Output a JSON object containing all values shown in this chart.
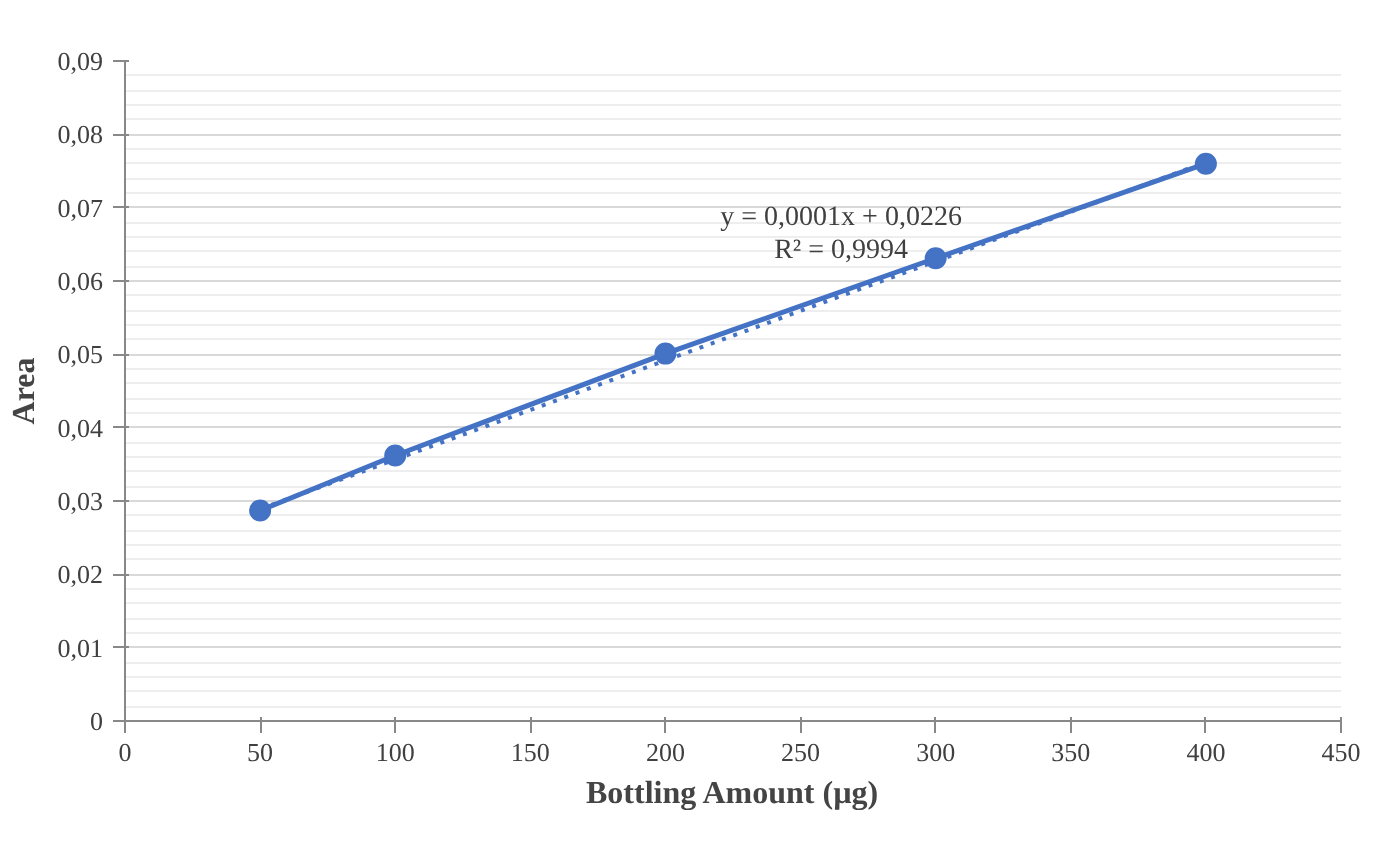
{
  "chart_data": {
    "type": "line",
    "xlabel": "Bottling Amount (µg)",
    "ylabel": "Area",
    "series": [
      {
        "name": null,
        "marker": "circle",
        "line_style": "solid",
        "color": "#4472c4",
        "x": [
          50,
          100,
          200,
          300,
          400
        ],
        "values": [
          0.0287,
          0.0362,
          0.0501,
          0.0631,
          0.076
        ]
      },
      {
        "name": null,
        "type": "line",
        "marker": "none",
        "line_style": "dotted",
        "color": "#4472c4",
        "x": [
          50,
          400
        ],
        "values": [
          0.0289,
          0.0762
        ]
      }
    ],
    "annotations": [
      "y = 0,0001x + 0,0226",
      "R² = 0,9994"
    ],
    "xlim": [
      0,
      450
    ],
    "xticks": [
      0,
      50,
      100,
      150,
      200,
      250,
      300,
      350,
      400,
      450
    ],
    "ylim": [
      0,
      0.09
    ],
    "yticks": [
      {
        "value": 0,
        "label": "0"
      },
      {
        "value": 0.01,
        "label": "0,01"
      },
      {
        "value": 0.02,
        "label": "0,02"
      },
      {
        "value": 0.03,
        "label": "0,03"
      },
      {
        "value": 0.04,
        "label": "0,04"
      },
      {
        "value": 0.05,
        "label": "0,05"
      },
      {
        "value": 0.06,
        "label": "0,06"
      },
      {
        "value": 0.07,
        "label": "0,07"
      },
      {
        "value": 0.08,
        "label": "0,08"
      },
      {
        "value": 0.09,
        "label": "0,09"
      }
    ],
    "grid": "y"
  }
}
